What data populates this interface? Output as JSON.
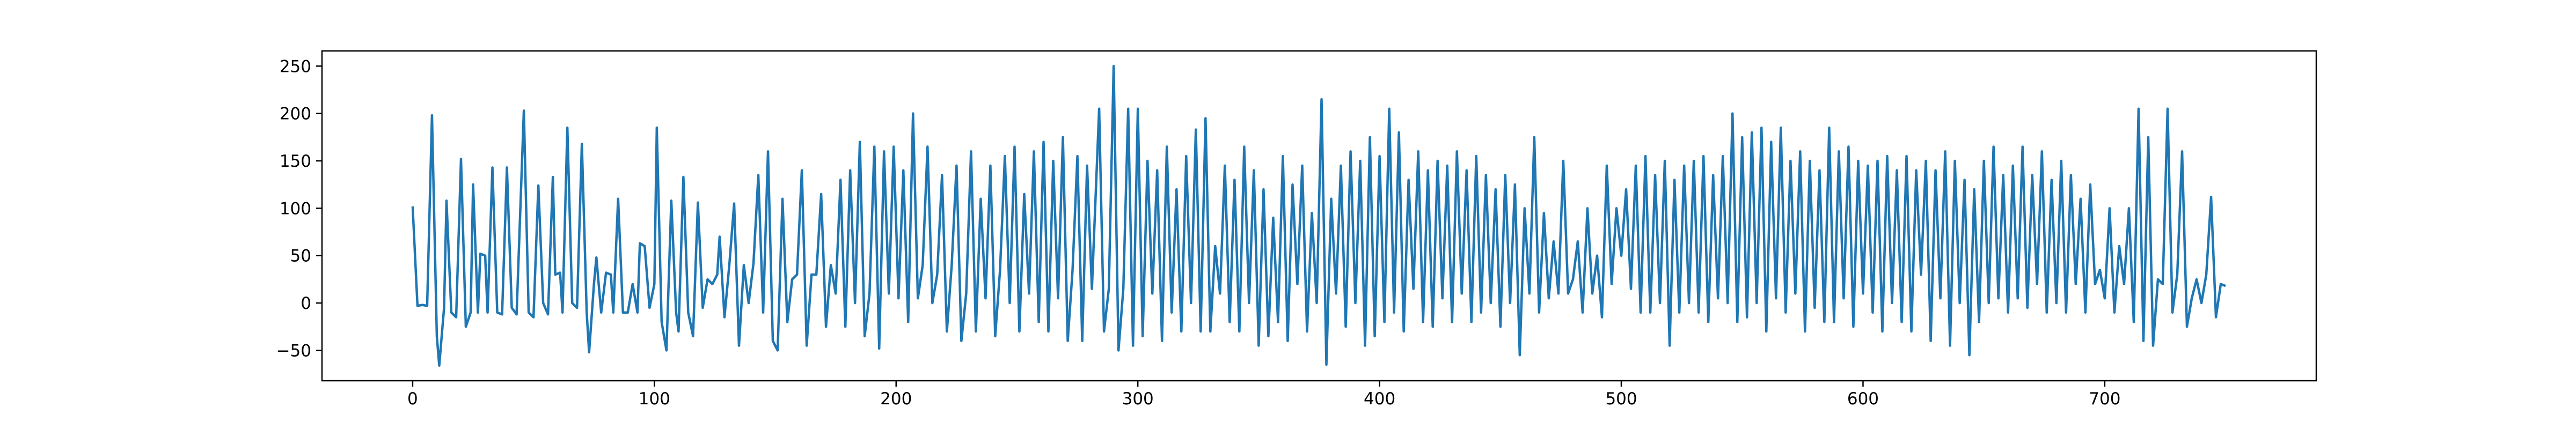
{
  "chart_data": {
    "type": "line",
    "color": "#1f77b4",
    "x": [
      0,
      2,
      4,
      6,
      8,
      10,
      11,
      13,
      14,
      16,
      18,
      20,
      22,
      24,
      25,
      27,
      28,
      30,
      31,
      33,
      35,
      37,
      39,
      41,
      43,
      46,
      48,
      50,
      52,
      54,
      56,
      58,
      59,
      61,
      62,
      64,
      66,
      68,
      70,
      72,
      73,
      75,
      76,
      78,
      80,
      82,
      83,
      85,
      87,
      89,
      91,
      93,
      94,
      96,
      98,
      100,
      101,
      103,
      105,
      107,
      109,
      110,
      112,
      114,
      116,
      118,
      120,
      122,
      124,
      126,
      127,
      129,
      131,
      133,
      135,
      137,
      139,
      141,
      143,
      145,
      147,
      149,
      151,
      153,
      155,
      157,
      159,
      161,
      163,
      165,
      167,
      169,
      171,
      173,
      175,
      177,
      179,
      181,
      183,
      185,
      187,
      189,
      191,
      193,
      195,
      197,
      199,
      201,
      203,
      205,
      207,
      209,
      211,
      213,
      215,
      217,
      219,
      221,
      223,
      225,
      227,
      229,
      231,
      233,
      235,
      237,
      239,
      241,
      243,
      245,
      247,
      249,
      251,
      253,
      255,
      257,
      259,
      261,
      263,
      265,
      267,
      269,
      271,
      273,
      275,
      277,
      279,
      281,
      284,
      286,
      288,
      290,
      292,
      294,
      296,
      298,
      300,
      302,
      304,
      306,
      308,
      310,
      312,
      314,
      316,
      318,
      320,
      322,
      324,
      326,
      328,
      330,
      332,
      334,
      336,
      338,
      340,
      342,
      344,
      346,
      348,
      350,
      352,
      354,
      356,
      358,
      360,
      362,
      364,
      366,
      368,
      370,
      372,
      374,
      376,
      378,
      380,
      382,
      384,
      386,
      388,
      390,
      392,
      394,
      396,
      398,
      400,
      402,
      404,
      406,
      408,
      410,
      412,
      414,
      416,
      418,
      420,
      422,
      424,
      426,
      428,
      430,
      432,
      434,
      436,
      438,
      440,
      442,
      444,
      446,
      448,
      450,
      452,
      454,
      456,
      458,
      460,
      462,
      464,
      466,
      468,
      470,
      472,
      474,
      476,
      478,
      480,
      482,
      484,
      486,
      488,
      490,
      492,
      494,
      496,
      498,
      500,
      502,
      504,
      506,
      508,
      510,
      512,
      514,
      516,
      518,
      520,
      522,
      524,
      526,
      528,
      530,
      532,
      534,
      536,
      538,
      540,
      542,
      544,
      546,
      548,
      550,
      552,
      554,
      556,
      558,
      560,
      562,
      564,
      566,
      568,
      570,
      572,
      574,
      576,
      578,
      580,
      582,
      584,
      586,
      588,
      590,
      592,
      594,
      596,
      598,
      600,
      602,
      604,
      606,
      608,
      610,
      612,
      614,
      616,
      618,
      620,
      622,
      624,
      626,
      628,
      630,
      632,
      634,
      636,
      638,
      640,
      642,
      644,
      646,
      648,
      650,
      652,
      654,
      656,
      658,
      660,
      662,
      664,
      666,
      668,
      670,
      672,
      674,
      676,
      678,
      680,
      682,
      684,
      686,
      688,
      690,
      692,
      694,
      696,
      698,
      700,
      702,
      704,
      706,
      708,
      710,
      712,
      714,
      716,
      718,
      720,
      722,
      724,
      726,
      728,
      730,
      732,
      734,
      736,
      738,
      740,
      742,
      744,
      746,
      748,
      750
    ],
    "values": [
      102,
      -3,
      -2,
      -3,
      198,
      -35,
      -66,
      -5,
      108,
      -10,
      -15,
      152,
      -25,
      -10,
      125,
      -10,
      52,
      50,
      -10,
      143,
      -10,
      -12,
      143,
      -5,
      -12,
      203,
      -10,
      -15,
      124,
      0,
      -12,
      133,
      30,
      32,
      -10,
      185,
      0,
      -5,
      168,
      -10,
      -52,
      20,
      48,
      -10,
      32,
      30,
      -10,
      110,
      -10,
      -10,
      20,
      -10,
      63,
      60,
      -5,
      20,
      185,
      -20,
      -50,
      108,
      -10,
      -30,
      133,
      -10,
      -35,
      106,
      -5,
      25,
      20,
      30,
      70,
      -15,
      40,
      105,
      -45,
      40,
      0,
      42,
      135,
      -10,
      160,
      -40,
      -50,
      110,
      -20,
      25,
      30,
      140,
      -45,
      30,
      30,
      115,
      -25,
      40,
      10,
      130,
      -25,
      140,
      0,
      170,
      -35,
      10,
      165,
      -48,
      160,
      10,
      165,
      5,
      140,
      -20,
      200,
      5,
      40,
      165,
      0,
      30,
      135,
      -30,
      40,
      145,
      -40,
      10,
      160,
      -30,
      110,
      5,
      145,
      -35,
      35,
      155,
      0,
      165,
      -30,
      115,
      10,
      160,
      -20,
      170,
      -30,
      150,
      5,
      175,
      -40,
      35,
      155,
      -40,
      145,
      15,
      205,
      -30,
      15,
      250,
      -50,
      15,
      205,
      -45,
      205,
      -35,
      150,
      10,
      140,
      -40,
      165,
      -10,
      120,
      -30,
      155,
      0,
      183,
      -30,
      195,
      -30,
      60,
      10,
      145,
      -20,
      130,
      -30,
      165,
      0,
      140,
      -45,
      120,
      -35,
      90,
      -20,
      155,
      -40,
      125,
      20,
      145,
      -30,
      95,
      0,
      215,
      -65,
      110,
      10,
      145,
      -25,
      160,
      0,
      150,
      -45,
      175,
      -35,
      155,
      -20,
      205,
      -10,
      180,
      -30,
      130,
      15,
      160,
      -20,
      140,
      -25,
      150,
      5,
      145,
      -20,
      160,
      10,
      140,
      -20,
      155,
      -10,
      135,
      0,
      120,
      -25,
      135,
      0,
      125,
      -55,
      100,
      10,
      175,
      -10,
      95,
      5,
      65,
      10,
      150,
      10,
      25,
      65,
      -10,
      100,
      10,
      50,
      -15,
      145,
      20,
      100,
      50,
      120,
      15,
      145,
      -10,
      155,
      -10,
      135,
      0,
      150,
      -45,
      130,
      -10,
      145,
      0,
      150,
      -10,
      155,
      -20,
      135,
      5,
      155,
      0,
      200,
      -20,
      175,
      -15,
      180,
      0,
      185,
      -30,
      170,
      5,
      185,
      -10,
      150,
      10,
      160,
      -30,
      150,
      -5,
      140,
      -20,
      185,
      -20,
      160,
      5,
      165,
      -25,
      150,
      10,
      145,
      -10,
      150,
      -30,
      155,
      0,
      140,
      -20,
      155,
      -30,
      140,
      30,
      150,
      -40,
      140,
      5,
      160,
      -45,
      150,
      0,
      130,
      -55,
      120,
      -20,
      150,
      0,
      165,
      5,
      135,
      -10,
      145,
      5,
      165,
      -5,
      135,
      20,
      160,
      -10,
      130,
      0,
      150,
      -10,
      135,
      20,
      110,
      -10,
      125,
      20,
      35,
      5,
      100,
      -10,
      60,
      20,
      100,
      -20,
      205,
      -40,
      175,
      -45,
      25,
      20,
      205,
      -10,
      30,
      160,
      -25,
      5,
      25,
      0,
      30,
      112,
      -15,
      20,
      18
    ],
    "xlim": [
      -37.5,
      787.5
    ],
    "xticks": [
      0,
      100,
      200,
      300,
      400,
      500,
      600,
      700
    ],
    "ylim": [
      -82,
      266
    ],
    "yticks": [
      {
        "value": -50,
        "label": "−50"
      },
      0,
      50,
      100,
      150,
      200,
      250
    ],
    "grid": false
  }
}
